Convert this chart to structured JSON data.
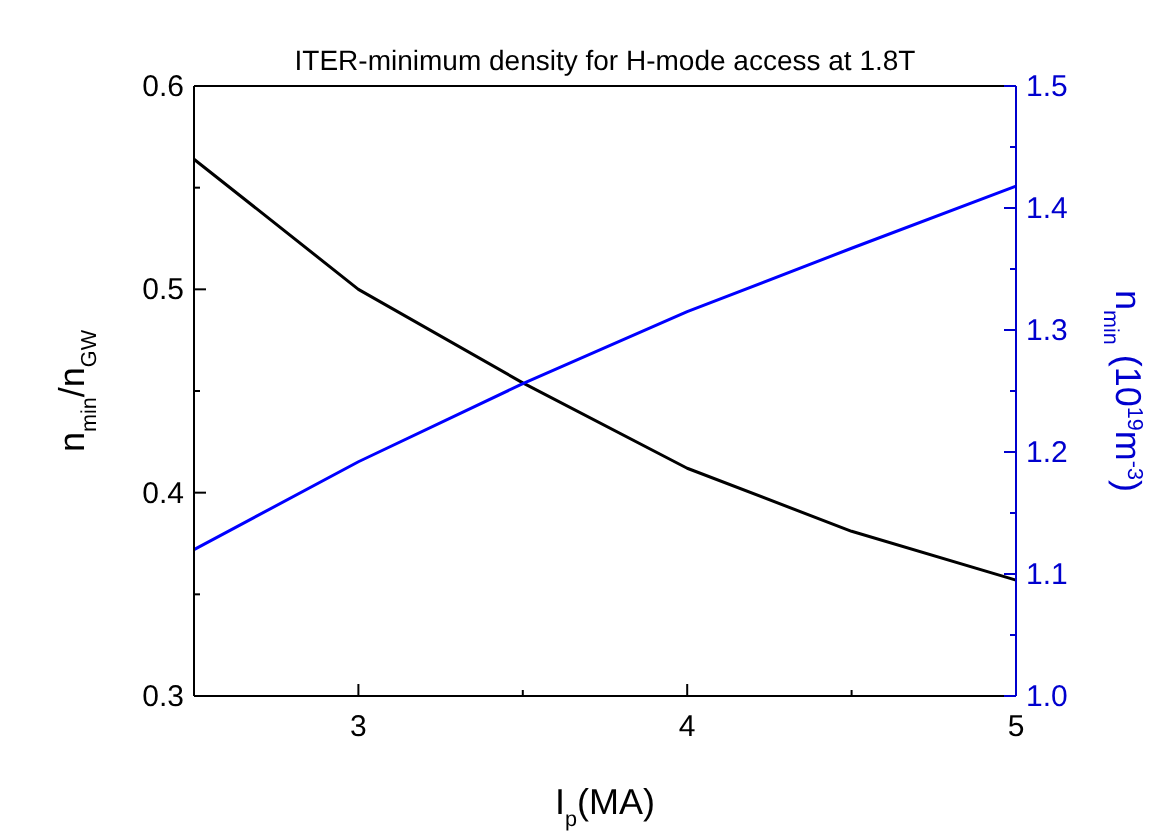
{
  "chart_data": {
    "type": "line",
    "title": "ITER-minimum density for H-mode access at 1.8T",
    "xlabel": "I$_{p}$(MA)",
    "ylabel": "n$_{min}$/n$_{GW}$",
    "y2label": "n$_{min}$ (10$^{19}$m$^{-3}$)",
    "x": [
      2.5,
      3,
      3.5,
      4,
      4.5,
      5
    ],
    "series": [
      {
        "color": "#000000",
        "values": [
          0.564,
          0.5,
          0.454,
          0.412,
          0.381,
          0.357
        ]
      },
      {
        "color": "#0000ff",
        "axis": "y2",
        "values": [
          1.12,
          1.192,
          1.256,
          1.315,
          1.367,
          1.418
        ]
      }
    ],
    "xlim": [
      2.5,
      5
    ],
    "xticks": [
      {
        "value": 2.5,
        "label": null
      },
      3,
      {
        "value": 3.5,
        "label": null
      },
      4,
      {
        "value": 4.5,
        "label": null
      },
      5
    ],
    "ylim": [
      0.3,
      0.6
    ],
    "yticks": [
      0.3,
      {
        "value": 0.35,
        "label": null
      },
      0.4,
      {
        "value": 0.45,
        "label": null
      },
      0.5,
      {
        "value": 0.55,
        "label": null
      },
      0.6
    ],
    "y2lim": [
      1.0,
      1.5
    ],
    "y2ticks": [
      {
        "value": 1.0,
        "label": "1.0"
      },
      {
        "value": 1.05,
        "label": null
      },
      1.1,
      {
        "value": 1.15,
        "label": null
      },
      1.2,
      {
        "value": 1.25,
        "label": null
      },
      1.3,
      {
        "value": 1.35,
        "label": null
      },
      1.4,
      {
        "value": 1.45,
        "label": null
      },
      1.5
    ],
    "grid": false,
    "line_style": "solid"
  }
}
